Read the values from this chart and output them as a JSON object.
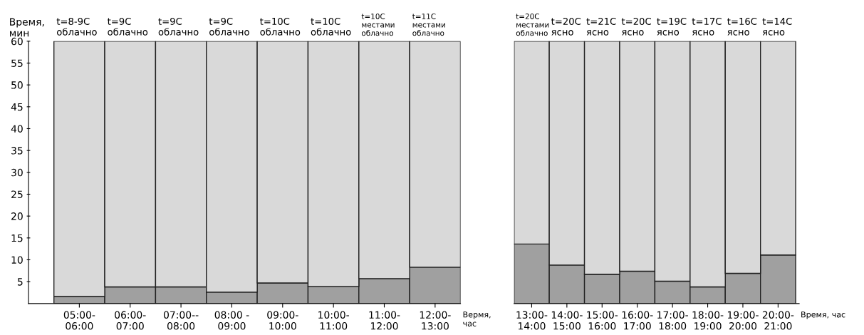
{
  "chart_data": [
    {
      "type": "bar",
      "stacked": true,
      "ylabel": "Время,\nмин",
      "xlabel": "Вермя,\nчас",
      "categories": [
        "05:00-\n06:00",
        "06:00-\n07:00",
        "07:00--\n08:00",
        "08:00 -\n09:00",
        "09:00-\n10:00",
        "10:00-\n11:00",
        "11:00-\n12:00",
        "12:00-\n13:00"
      ],
      "series": [
        {
          "color": "#a0a0a0",
          "values": [
            1.6,
            3.8,
            3.8,
            2.6,
            4.7,
            3.9,
            5.7,
            8.3
          ]
        },
        {
          "color": "#d9d9d9",
          "values": [
            58.4,
            56.2,
            56.2,
            57.4,
            55.3,
            56.1,
            54.3,
            51.7
          ]
        }
      ],
      "ylim": [
        0,
        60
      ],
      "yticks": [
        5,
        10,
        15,
        20,
        25,
        30,
        35,
        40,
        45,
        50,
        55,
        60
      ],
      "annotations": [
        {
          "text": "t=8-9C\nоблачно",
          "x": "05:00-\n06:00",
          "y": 60
        },
        {
          "text": "t=9C\nоблачно",
          "x": "06:00-\n07:00",
          "y": 60
        },
        {
          "text": "t=9C\nоблачно",
          "x": "07:00--\n08:00",
          "y": 60
        },
        {
          "text": "t=9C\nоблачно",
          "x": "08:00 -\n09:00",
          "y": 60
        },
        {
          "text": "t=10C\nоблачно",
          "x": "09:00-\n10:00",
          "y": 60
        },
        {
          "text": "t=10C\nоблачно",
          "x": "10:00-\n11:00",
          "y": 60
        },
        {
          "text": "t=10C\nместами\nоблачно",
          "x": "11:00-\n12:00",
          "y": 60
        },
        {
          "text": "t=11C\nместами\nоблачно",
          "x": "12:00-\n13:00",
          "y": 60
        }
      ]
    },
    {
      "type": "bar",
      "stacked": true,
      "xlabel": "Время, час",
      "tick_labels": "x",
      "categories": [
        "13:00-\n14:00",
        "14:00-\n15:00",
        "15:00-\n16:00",
        "16:00-\n17:00",
        "17:00-\n18:00",
        "18:00-\n19:00",
        "19:00-\n20:00",
        "20:00-\n21:00"
      ],
      "series": [
        {
          "color": "#a0a0a0",
          "values": [
            13.6,
            8.8,
            6.7,
            7.4,
            5.1,
            3.8,
            6.9,
            11.1
          ]
        },
        {
          "color": "#d9d9d9",
          "values": [
            46.4,
            51.2,
            53.3,
            52.6,
            54.9,
            56.2,
            53.1,
            48.9
          ]
        }
      ],
      "ylim": [
        0,
        60
      ],
      "yticks": [
        5,
        10,
        15,
        20,
        25,
        30,
        35,
        40,
        45,
        50,
        55,
        60
      ],
      "annotations": [
        {
          "text": "t=20C\nместами\nоблачно",
          "x": "13:00-\n14:00",
          "y": 60
        },
        {
          "text": "t=20C\nясно",
          "x": "14:00-\n15:00",
          "y": 60
        },
        {
          "text": "t=21C\nясно",
          "x": "15:00-\n16:00",
          "y": 60
        },
        {
          "text": "t=20C\nясно",
          "x": "16:00-\n17:00",
          "y": 60
        },
        {
          "text": "t=19C\nясно",
          "x": "17:00-\n18:00",
          "y": 60
        },
        {
          "text": "t=17C\nясно",
          "x": "18:00-\n19:00",
          "y": 60
        },
        {
          "text": "t=16C\nясно",
          "x": "19:00-\n20:00",
          "y": 60
        },
        {
          "text": "t=14C\nясно",
          "x": "20:00-\n21:00",
          "y": 60
        }
      ]
    }
  ]
}
